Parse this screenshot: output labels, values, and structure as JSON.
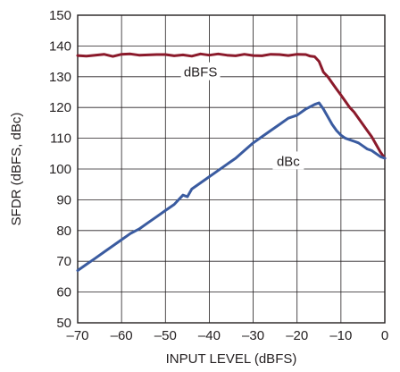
{
  "chart_data": {
    "type": "line",
    "title": "",
    "xlabel": "INPUT LEVEL (dBFS)",
    "ylabel": "SFDR (dBFS, dBc)",
    "xlim": [
      -70,
      0
    ],
    "ylim": [
      50,
      150
    ],
    "xticks": [
      "–70",
      "–60",
      "–50",
      "–40",
      "–30",
      "–20",
      "–10",
      "0"
    ],
    "yticks": [
      "50",
      "60",
      "70",
      "80",
      "90",
      "100",
      "110",
      "120",
      "130",
      "140",
      "150"
    ],
    "grid": true,
    "colors": {
      "dBFS": "#8b1a2b",
      "dBc": "#3a5ba0",
      "grid": "#231f20"
    },
    "series": [
      {
        "name": "dBFS",
        "x": [
          -70,
          -68,
          -66,
          -64,
          -62,
          -60,
          -58,
          -56,
          -54,
          -52,
          -50,
          -48,
          -46,
          -44,
          -42,
          -40,
          -38,
          -36,
          -34,
          -32,
          -30,
          -28,
          -26,
          -24,
          -22,
          -20,
          -18,
          -17,
          -16,
          -15,
          -14,
          -13,
          -12,
          -11,
          -10,
          -9,
          -8,
          -7,
          -6,
          -5,
          -4,
          -3,
          -2,
          -1,
          0
        ],
        "y": [
          136.9,
          136.7,
          137.0,
          137.3,
          136.6,
          137.3,
          137.4,
          137.0,
          137.1,
          137.2,
          137.2,
          136.8,
          137.1,
          136.7,
          137.4,
          137.0,
          137.4,
          137.0,
          136.8,
          137.3,
          136.9,
          136.8,
          137.3,
          137.2,
          136.9,
          137.3,
          137.2,
          136.7,
          136.5,
          135.0,
          131.5,
          130.0,
          128.0,
          126.0,
          124.0,
          122.0,
          120.0,
          118.5,
          116.5,
          114.5,
          112.5,
          110.5,
          108.0,
          105.5,
          103.5
        ]
      },
      {
        "name": "dBc",
        "x": [
          -70,
          -68,
          -66,
          -64,
          -62,
          -60,
          -58,
          -56,
          -54,
          -52,
          -50,
          -48,
          -46,
          -45,
          -44,
          -42,
          -40,
          -38,
          -36,
          -34,
          -32,
          -30,
          -28,
          -26,
          -24,
          -22,
          -20,
          -18,
          -16,
          -15,
          -14,
          -13,
          -12,
          -11,
          -10,
          -9,
          -8,
          -7,
          -6,
          -5,
          -4,
          -3,
          -2,
          -1,
          0
        ],
        "y": [
          67.0,
          69.0,
          71.0,
          73.0,
          75.0,
          77.0,
          79.0,
          80.5,
          82.5,
          84.5,
          86.5,
          88.5,
          91.5,
          91.0,
          93.5,
          95.5,
          97.5,
          99.5,
          101.5,
          103.5,
          106.0,
          108.5,
          110.5,
          112.5,
          114.5,
          116.5,
          117.5,
          119.5,
          121.0,
          121.5,
          119.5,
          117.0,
          114.5,
          112.5,
          111.0,
          110.0,
          109.5,
          109.0,
          108.5,
          107.5,
          106.5,
          106.0,
          105.0,
          104.0,
          103.5
        ]
      }
    ],
    "annotations": [
      {
        "text": "dBFS",
        "x": -42,
        "y": 131.5
      },
      {
        "text": "dBc",
        "x": -22,
        "y": 102.5
      }
    ]
  }
}
